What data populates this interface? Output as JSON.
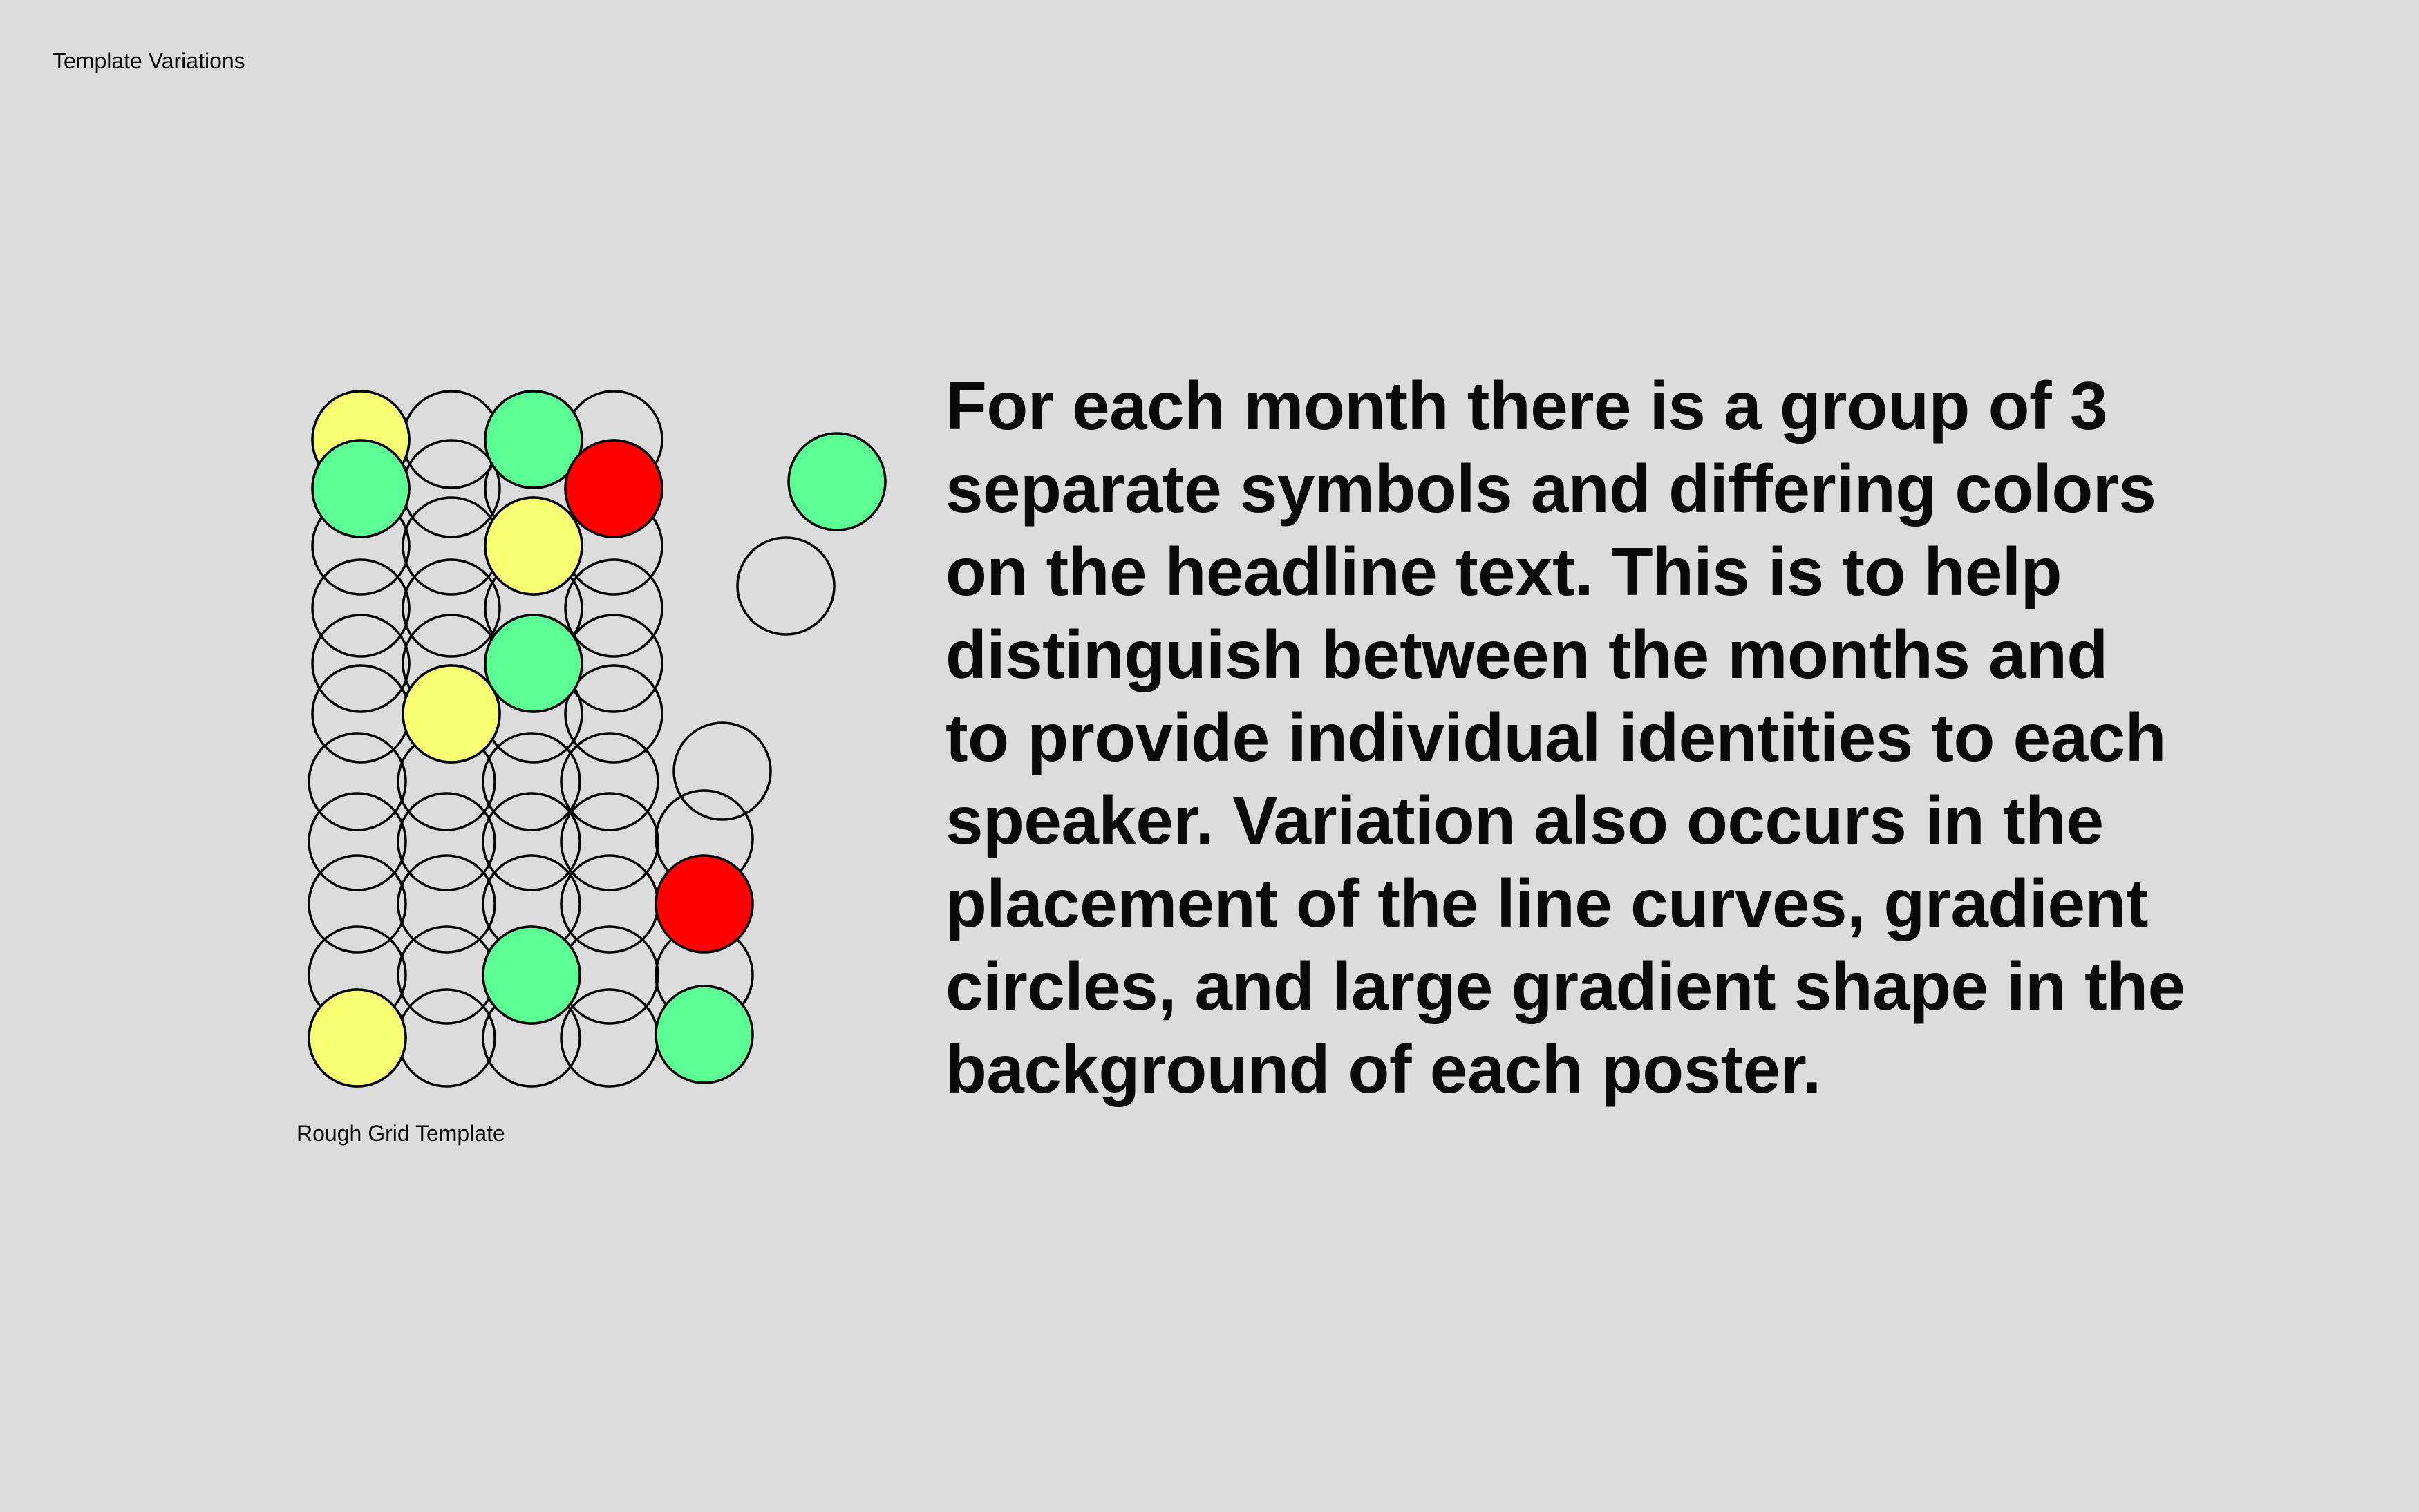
{
  "header": {
    "label": "Template Variations"
  },
  "figure": {
    "caption": "Rough Grid Template",
    "colors": {
      "yellow": "#f7ff73",
      "green": "#5cff94",
      "red": "#ff0000",
      "stroke": "#000000",
      "background": "#dcdcdc"
    },
    "filled_circles": [
      {
        "name": "yellow-circle",
        "color": "yellow"
      },
      {
        "name": "green-circle",
        "color": "green"
      },
      {
        "name": "green-circle",
        "color": "green"
      },
      {
        "name": "red-circle",
        "color": "red"
      },
      {
        "name": "yellow-circle",
        "color": "yellow"
      },
      {
        "name": "green-circle",
        "color": "green"
      },
      {
        "name": "yellow-circle",
        "color": "yellow"
      },
      {
        "name": "red-circle",
        "color": "red"
      },
      {
        "name": "green-circle",
        "color": "green"
      },
      {
        "name": "yellow-circle",
        "color": "yellow"
      },
      {
        "name": "green-circle",
        "color": "green"
      },
      {
        "name": "green-circle",
        "color": "green"
      }
    ]
  },
  "description": {
    "lines": [
      "For each month there is a group of 3",
      "separate symbols and differing colors",
      "on the headline text. This is to help",
      "distinguish between the months and",
      "to provide individual identities to each",
      "speaker. Variation also occurs in the",
      "placement of the line curves, gradient",
      "circles, and large gradient shape in the",
      "background of each poster."
    ]
  }
}
